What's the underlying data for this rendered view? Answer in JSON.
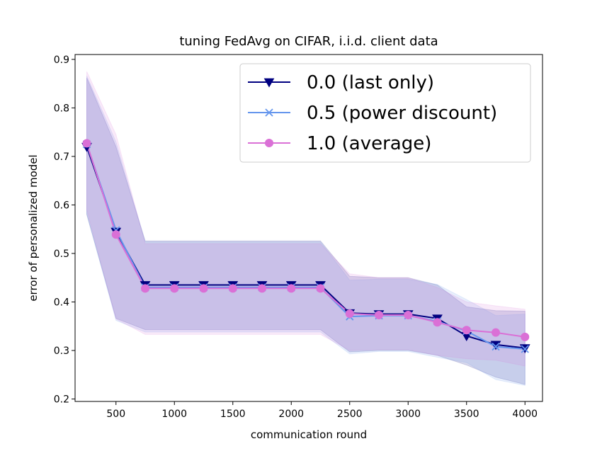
{
  "chart_data": {
    "type": "line",
    "title": "tuning FedAvg on CIFAR, i.i.d. client data",
    "xlabel": "communication round",
    "ylabel": "error of personalized model",
    "xlim": [
      150,
      4150
    ],
    "ylim": [
      0.195,
      0.91
    ],
    "xticks": [
      500,
      1000,
      1500,
      2000,
      2500,
      3000,
      3500,
      4000
    ],
    "yticks": [
      0.2,
      0.3,
      0.4,
      0.5,
      0.6,
      0.7,
      0.8,
      0.9
    ],
    "grid": false,
    "legend_position": "top-right",
    "x": [
      250,
      500,
      750,
      1000,
      1250,
      1500,
      1750,
      2000,
      2250,
      2500,
      2750,
      3000,
      3250,
      3500,
      3750,
      4000
    ],
    "series": [
      {
        "name": "0.0 (last only)",
        "color": "#000080",
        "marker": "triangle-down",
        "values": [
          0.72,
          0.545,
          0.435,
          0.435,
          0.435,
          0.435,
          0.435,
          0.435,
          0.435,
          0.377,
          0.375,
          0.375,
          0.366,
          0.33,
          0.312,
          0.305
        ],
        "band_upper": [
          0.862,
          0.72,
          0.526,
          0.526,
          0.526,
          0.526,
          0.526,
          0.526,
          0.526,
          0.453,
          0.45,
          0.45,
          0.435,
          0.39,
          0.382,
          0.381
        ],
        "band_lower": [
          0.58,
          0.366,
          0.343,
          0.343,
          0.343,
          0.343,
          0.343,
          0.343,
          0.343,
          0.297,
          0.3,
          0.3,
          0.29,
          0.27,
          0.245,
          0.23
        ],
        "band_color": "#000080"
      },
      {
        "name": "0.5 (power discount)",
        "color": "#6495ed",
        "marker": "x",
        "values": [
          0.725,
          0.548,
          0.43,
          0.43,
          0.43,
          0.43,
          0.43,
          0.43,
          0.43,
          0.37,
          0.372,
          0.372,
          0.36,
          0.34,
          0.308,
          0.303
        ],
        "band_upper": [
          0.866,
          0.73,
          0.524,
          0.524,
          0.524,
          0.524,
          0.524,
          0.524,
          0.524,
          0.445,
          0.447,
          0.447,
          0.436,
          0.405,
          0.372,
          0.375
        ],
        "band_lower": [
          0.582,
          0.362,
          0.338,
          0.338,
          0.338,
          0.338,
          0.338,
          0.338,
          0.338,
          0.293,
          0.298,
          0.298,
          0.286,
          0.275,
          0.24,
          0.228
        ],
        "band_color": "#6495ed"
      },
      {
        "name": "1.0 (average)",
        "color": "#da70d6",
        "marker": "circle",
        "values": [
          0.727,
          0.539,
          0.428,
          0.428,
          0.428,
          0.428,
          0.428,
          0.428,
          0.428,
          0.376,
          0.373,
          0.373,
          0.358,
          0.342,
          0.337,
          0.328
        ],
        "band_upper": [
          0.875,
          0.745,
          0.52,
          0.52,
          0.52,
          0.52,
          0.52,
          0.52,
          0.52,
          0.458,
          0.45,
          0.45,
          0.43,
          0.4,
          0.392,
          0.385
        ],
        "band_lower": [
          0.59,
          0.365,
          0.333,
          0.333,
          0.333,
          0.333,
          0.333,
          0.333,
          0.333,
          0.3,
          0.302,
          0.302,
          0.29,
          0.283,
          0.28,
          0.268
        ],
        "band_color": "#da70d6"
      }
    ]
  }
}
